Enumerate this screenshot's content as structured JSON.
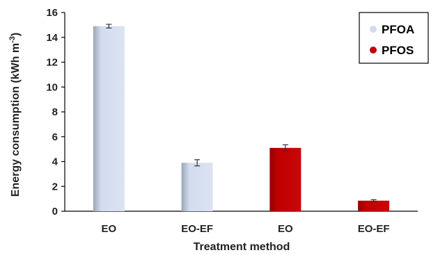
{
  "chart_data": {
    "type": "bar",
    "categories": [
      "EO",
      "EO-EF",
      "EO",
      "EO-EF"
    ],
    "values": [
      14.9,
      3.9,
      5.1,
      0.85
    ],
    "errors": [
      0.15,
      0.25,
      0.25,
      0.08
    ],
    "series_of_bar": [
      "PFOA",
      "PFOA",
      "PFOS",
      "PFOS"
    ],
    "series": [
      {
        "name": "PFOA",
        "color": "#d3dcef"
      },
      {
        "name": "PFOS",
        "color": "#c00000"
      }
    ],
    "title": "",
    "xlabel": "Treatment method",
    "ylabel_main": "Energy consumption (kWh m",
    "ylabel_sup": "-3",
    "ylabel_end": ")",
    "ylim": [
      0,
      16
    ],
    "yticks": [
      "0",
      "2",
      "4",
      "6",
      "8",
      "10",
      "12",
      "14",
      "16"
    ],
    "grid": false,
    "legend": "top-right"
  }
}
